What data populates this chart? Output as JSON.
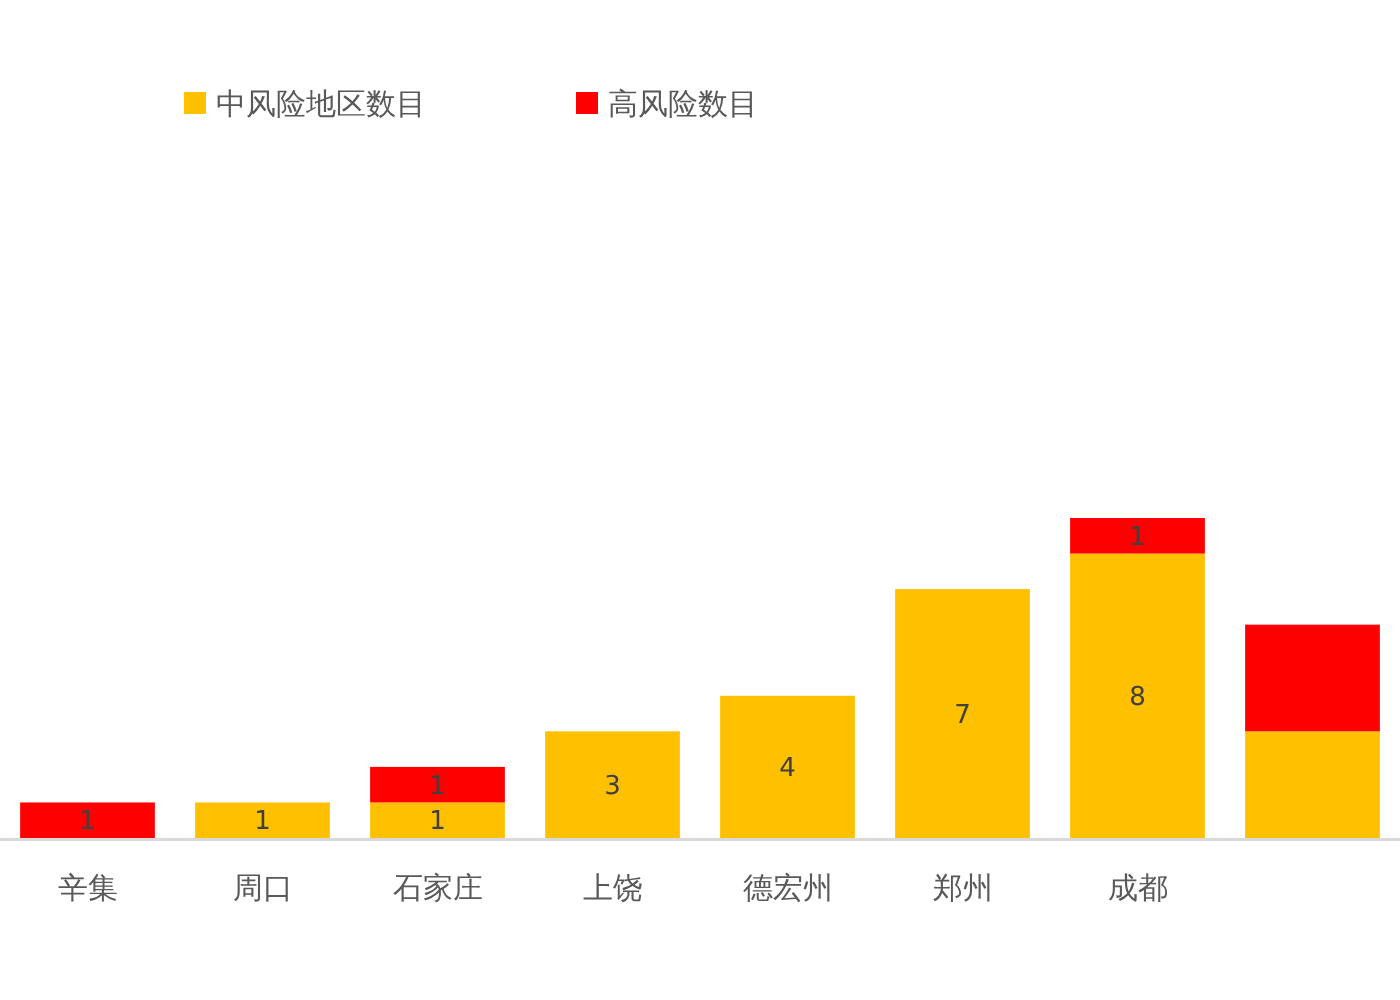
{
  "chart_data": {
    "type": "bar",
    "stacked": true,
    "legend": "top",
    "categories": [
      "辛集",
      "周口",
      "石家庄",
      "上饶",
      "德宏州",
      "郑州",
      "成都",
      null
    ],
    "series": [
      {
        "name": "中风险地区数目",
        "color": "#ffc000",
        "values": [
          null,
          1,
          1,
          3,
          4,
          7,
          8,
          3
        ],
        "value_labels": [
          null,
          "1",
          "1",
          "3",
          "4",
          "7",
          "8",
          null
        ]
      },
      {
        "name": "高风险数目",
        "color": "#ff0000",
        "values": [
          1,
          null,
          1,
          null,
          null,
          null,
          1,
          3
        ],
        "value_labels": [
          "1",
          null,
          "1",
          null,
          null,
          null,
          "1",
          null
        ]
      }
    ]
  }
}
